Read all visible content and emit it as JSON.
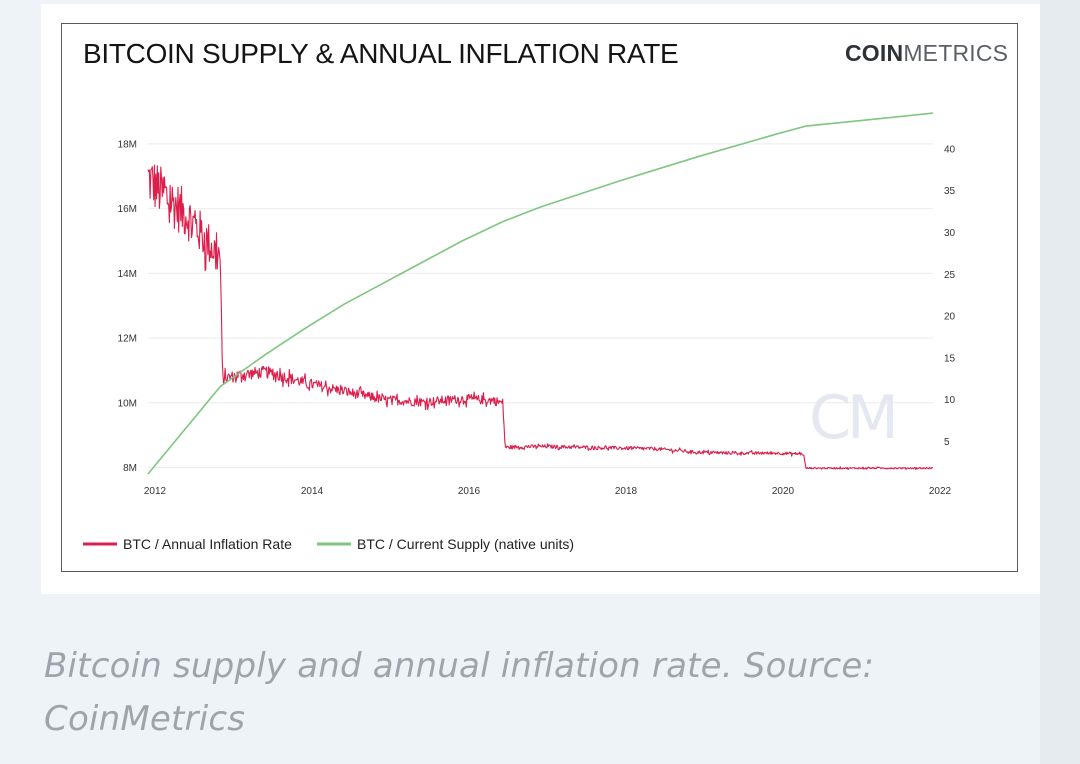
{
  "figure": {
    "caption": "Bitcoin supply and annual inflation rate. Source: CoinMetrics",
    "logo_bold": "COIN",
    "logo_light": "METRICS",
    "watermark": "CM"
  },
  "colors": {
    "inflation": "#dc1e4a",
    "supply": "#7fc67f",
    "grid": "#ececec",
    "background": "#eef3f7"
  },
  "chart_data": {
    "type": "line",
    "title": "BITCOIN SUPPLY & ANNUAL INFLATION RATE",
    "xlabel": "",
    "ylabel_left": "",
    "ylabel_right": "",
    "x_ticks": [
      "2012",
      "2014",
      "2016",
      "2018",
      "2020",
      "2022"
    ],
    "xlim": [
      2012.0,
      2022.0
    ],
    "y_left_ticks": [
      "8M",
      "10M",
      "12M",
      "14M",
      "16M",
      "18M"
    ],
    "y_left_lim": [
      7800000,
      18800000
    ],
    "y_right_ticks": [
      "5",
      "10",
      "15",
      "20",
      "25",
      "30",
      "35",
      "40"
    ],
    "y_right_lim": [
      1.1,
      43.7
    ],
    "grid": true,
    "legend_position": "bottom-left",
    "series": [
      {
        "name": "BTC / Annual Inflation Rate",
        "axis": "right",
        "color": "#dc1e4a",
        "noisy": true,
        "x": [
          2012.0,
          2012.2,
          2012.5,
          2012.75,
          2012.92,
          2012.95,
          2013.2,
          2013.5,
          2013.8,
          2014.0,
          2014.5,
          2015.0,
          2015.5,
          2016.0,
          2016.4,
          2016.52,
          2016.55,
          2017.0,
          2017.5,
          2018.0,
          2018.5,
          2019.0,
          2019.5,
          2020.0,
          2020.35,
          2020.38,
          2020.8,
          2021.2,
          2021.6,
          2022.0
        ],
        "y": [
          36.5,
          34.5,
          32.0,
          29.0,
          27.0,
          12.5,
          13.0,
          13.3,
          12.6,
          12.0,
          11.0,
          10.0,
          9.7,
          10.1,
          9.9,
          9.6,
          4.3,
          4.4,
          4.3,
          4.2,
          4.1,
          3.7,
          3.6,
          3.6,
          3.5,
          1.8,
          1.8,
          1.8,
          1.8,
          1.8
        ]
      },
      {
        "name": "BTC / Current Supply (native units)",
        "axis": "left",
        "color": "#7fc67f",
        "noisy": false,
        "x": [
          2012.0,
          2012.92,
          2013.5,
          2014.0,
          2014.5,
          2015.0,
          2015.5,
          2016.0,
          2016.52,
          2017.0,
          2018.0,
          2019.0,
          2020.0,
          2020.38,
          2021.0,
          2022.0
        ],
        "y": [
          7800000,
          10500000,
          11500000,
          12300000,
          13050000,
          13700000,
          14350000,
          15000000,
          15600000,
          16050000,
          16850000,
          17600000,
          18300000,
          18550000,
          18700000,
          18950000
        ]
      }
    ]
  }
}
